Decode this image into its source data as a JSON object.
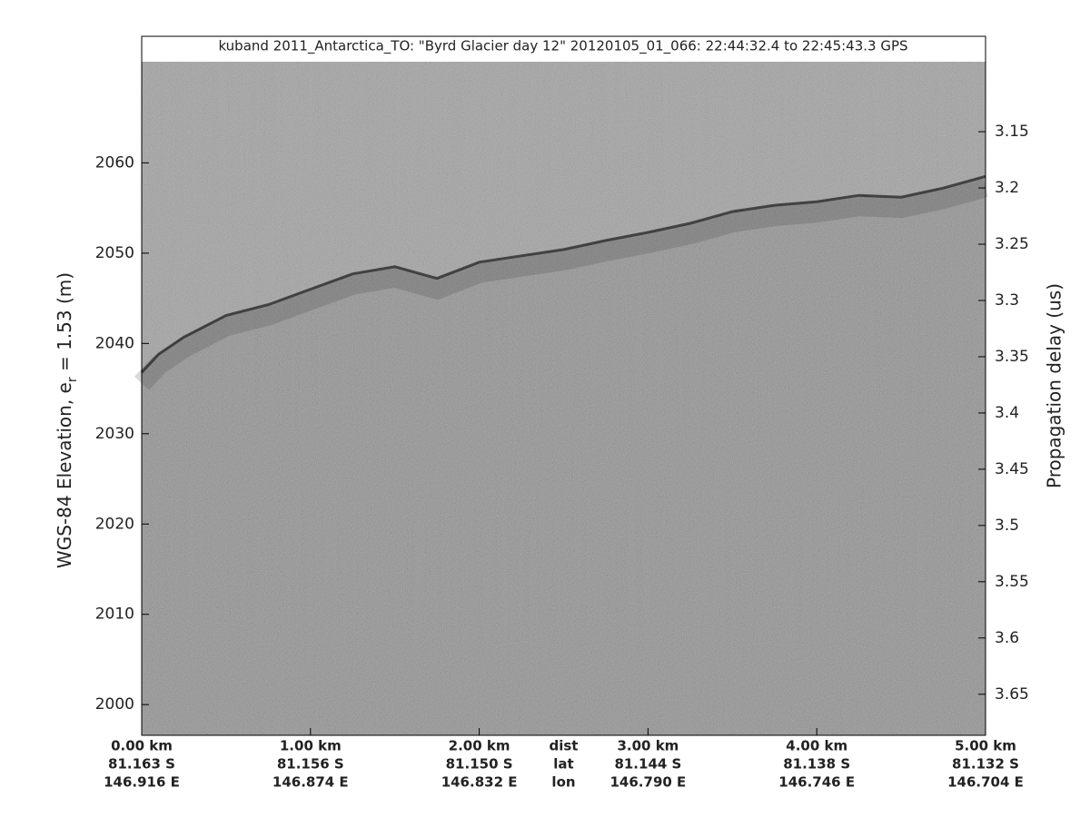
{
  "chart_data": {
    "type": "line",
    "title": "kuband 2011_Antarctica_TO: \"Byrd Glacier day 12\"  20120105_01_066: 22:44:32.4 to 22:45:43.3 GPS",
    "ylabel": "WGS-84 Elevation, e",
    "ylabel_sub": "r",
    "ylabel_rest": " = 1.53 (m)",
    "y2label": "Propagation delay (us)",
    "x": [
      0,
      0.1,
      0.25,
      0.5,
      0.75,
      1.0,
      1.25,
      1.5,
      1.75,
      2.0,
      2.25,
      2.5,
      2.75,
      3.0,
      3.25,
      3.5,
      3.75,
      4.0,
      4.25,
      4.5,
      4.75,
      5.0
    ],
    "values": [
      2036.8,
      2038.8,
      2040.7,
      2043.1,
      2044.3,
      2046.0,
      2047.7,
      2048.5,
      2047.2,
      2049.0,
      2049.7,
      2050.4,
      2051.4,
      2052.3,
      2053.3,
      2054.6,
      2055.3,
      2055.7,
      2056.4,
      2056.2,
      2057.2,
      2058.5
    ],
    "color": "#2a2a2a",
    "xlim": [
      0,
      5
    ],
    "xticks": [
      {
        "value": 0,
        "label": "0.00 km"
      },
      {
        "value": 1,
        "label": "1.00 km"
      },
      {
        "value": 2,
        "label": "2.00 km"
      },
      {
        "value": 3,
        "label": "3.00 km"
      },
      {
        "value": 4,
        "label": "4.00 km"
      },
      {
        "value": 5,
        "label": "5.00 km"
      }
    ],
    "lat_labels": [
      "81.163 S",
      "81.156 S",
      "81.150 S",
      "81.144 S",
      "81.138 S",
      "81.132 S"
    ],
    "lon_labels": [
      "146.916 E",
      "146.874 E",
      "146.832 E",
      "146.790 E",
      "146.746 E",
      "146.704 E"
    ],
    "row_labels": [
      "dist",
      "lat",
      "lon"
    ],
    "ylim": [
      1996.6,
      2071.2
    ],
    "yticks": [
      2000,
      2010,
      2020,
      2030,
      2040,
      2050,
      2060
    ],
    "y2lim": [
      3.6865,
      3.0878
    ],
    "y2ticks": [
      3.15,
      3.2,
      3.25,
      3.3,
      3.35,
      3.4,
      3.45,
      3.5,
      3.55,
      3.6,
      3.65
    ]
  }
}
